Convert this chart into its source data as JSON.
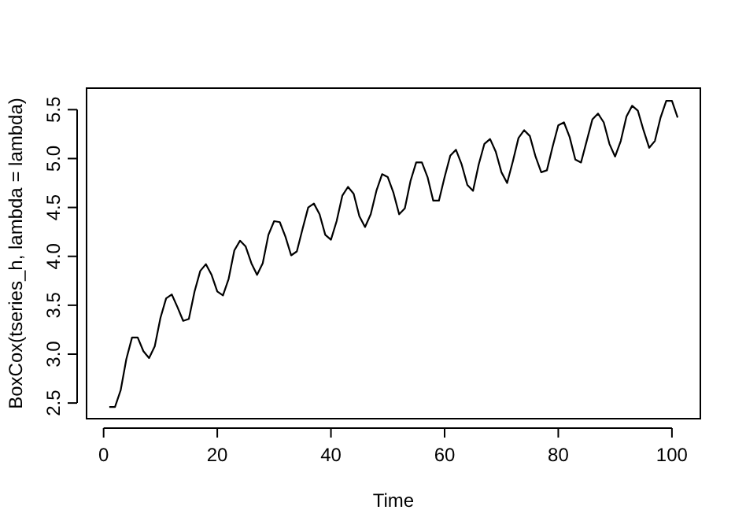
{
  "chart_data": {
    "type": "line",
    "xlabel": "Time",
    "ylabel": "BoxCox(tseries_h, lambda = lambda)",
    "x": [
      1,
      2,
      3,
      4,
      5,
      6,
      7,
      8,
      9,
      10,
      11,
      12,
      13,
      14,
      15,
      16,
      17,
      18,
      19,
      20,
      21,
      22,
      23,
      24,
      25,
      26,
      27,
      28,
      29,
      30,
      31,
      32,
      33,
      34,
      35,
      36,
      37,
      38,
      39,
      40,
      41,
      42,
      43,
      44,
      45,
      46,
      47,
      48,
      49,
      50,
      51,
      52,
      53,
      54,
      55,
      56,
      57,
      58,
      59,
      60,
      61,
      62,
      63,
      64,
      65,
      66,
      67,
      68,
      69,
      70,
      71,
      72,
      73,
      74,
      75,
      76,
      77,
      78,
      79,
      80,
      81,
      82,
      83,
      84,
      85,
      86,
      87,
      88,
      89,
      90,
      91,
      92,
      93,
      94,
      95,
      96,
      97,
      98,
      99,
      100,
      101
    ],
    "series": [
      {
        "color": "#000000",
        "values": [
          2.46,
          2.46,
          2.63,
          2.95,
          3.17,
          3.17,
          3.03,
          2.96,
          3.08,
          3.37,
          3.57,
          3.61,
          3.48,
          3.34,
          3.36,
          3.64,
          3.85,
          3.92,
          3.81,
          3.64,
          3.6,
          3.77,
          4.06,
          4.16,
          4.1,
          3.93,
          3.81,
          3.93,
          4.22,
          4.36,
          4.35,
          4.2,
          4.01,
          4.05,
          4.28,
          4.5,
          4.54,
          4.43,
          4.22,
          4.17,
          4.36,
          4.62,
          4.71,
          4.64,
          4.41,
          4.3,
          4.43,
          4.67,
          4.84,
          4.81,
          4.65,
          4.43,
          4.49,
          4.77,
          4.96,
          4.96,
          4.81,
          4.57,
          4.57,
          4.81,
          5.03,
          5.09,
          4.94,
          4.73,
          4.67,
          4.94,
          5.15,
          5.2,
          5.07,
          4.86,
          4.75,
          4.97,
          5.21,
          5.29,
          5.23,
          5.02,
          4.86,
          4.88,
          5.12,
          5.34,
          5.37,
          5.22,
          4.99,
          4.96,
          5.18,
          5.4,
          5.46,
          5.37,
          5.15,
          5.02,
          5.18,
          5.43,
          5.54,
          5.49,
          5.29,
          5.11,
          5.18,
          5.42,
          5.59,
          5.59,
          5.42
        ]
      }
    ],
    "xlim": [
      -3,
      105
    ],
    "ylim": [
      2.34,
      5.72
    ],
    "xticks": [
      0,
      20,
      40,
      60,
      80,
      100
    ],
    "yticks": [
      2.5,
      {
        "value": 3,
        "label": "3.0"
      },
      3.5,
      {
        "value": 4,
        "label": "4.0"
      },
      4.5,
      {
        "value": 5,
        "label": "5.0"
      },
      5.5
    ],
    "grid": false,
    "line_style": "solid",
    "marker": "none"
  }
}
